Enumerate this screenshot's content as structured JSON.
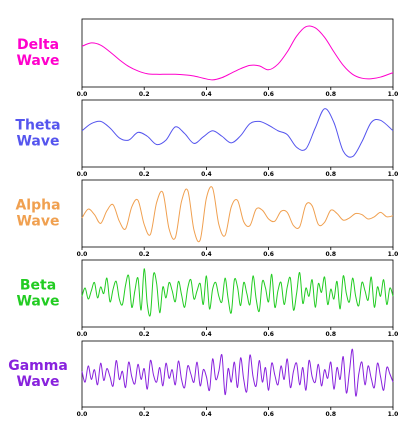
{
  "chart_data": [
    {
      "type": "line",
      "title": "",
      "xlabel": "",
      "ylabel": "",
      "xlim": [
        0.0,
        1.0
      ],
      "x_ticks": [
        "0.0",
        "0.2",
        "0.4",
        "0.6",
        "0.8",
        "1.0"
      ],
      "grid": false,
      "y_ticks_visible": false,
      "label_lines": [
        "Delta",
        "Wave"
      ],
      "color": "#ff00cc",
      "series": [
        {
          "x": [
            0.0,
            0.03,
            0.06,
            0.09,
            0.12,
            0.15,
            0.18,
            0.21,
            0.24,
            0.27,
            0.3,
            0.33,
            0.36,
            0.39,
            0.42,
            0.45,
            0.48,
            0.51,
            0.54,
            0.57,
            0.6,
            0.63,
            0.66,
            0.69,
            0.72,
            0.75,
            0.78,
            0.81,
            0.84,
            0.87,
            0.9,
            0.93,
            0.96,
            1.0
          ],
          "values": [
            0.62,
            0.68,
            0.64,
            0.52,
            0.38,
            0.26,
            0.18,
            0.13,
            0.12,
            0.12,
            0.12,
            0.11,
            0.09,
            0.05,
            0.02,
            0.06,
            0.14,
            0.22,
            0.28,
            0.27,
            0.2,
            0.3,
            0.52,
            0.8,
            0.97,
            0.95,
            0.78,
            0.52,
            0.28,
            0.12,
            0.05,
            0.04,
            0.07,
            0.15
          ]
        }
      ]
    },
    {
      "type": "line",
      "title": "",
      "xlabel": "",
      "ylabel": "",
      "xlim": [
        0.0,
        1.0
      ],
      "x_ticks": [
        "0.0",
        "0.2",
        "0.4",
        "0.6",
        "0.8",
        "1.0"
      ],
      "grid": false,
      "y_ticks_visible": false,
      "label_lines": [
        "Theta",
        "Wave"
      ],
      "color": "#5555ee",
      "series": [
        {
          "x": [
            0.0,
            0.03,
            0.06,
            0.09,
            0.12,
            0.15,
            0.18,
            0.21,
            0.24,
            0.27,
            0.3,
            0.33,
            0.36,
            0.39,
            0.42,
            0.45,
            0.48,
            0.51,
            0.54,
            0.57,
            0.6,
            0.63,
            0.66,
            0.69,
            0.72,
            0.75,
            0.78,
            0.81,
            0.84,
            0.87,
            0.9,
            0.93,
            0.96,
            1.0
          ],
          "values": [
            0.55,
            0.68,
            0.72,
            0.6,
            0.42,
            0.38,
            0.52,
            0.45,
            0.3,
            0.38,
            0.62,
            0.5,
            0.32,
            0.44,
            0.55,
            0.45,
            0.33,
            0.46,
            0.68,
            0.72,
            0.65,
            0.55,
            0.48,
            0.25,
            0.22,
            0.6,
            0.95,
            0.7,
            0.18,
            0.08,
            0.35,
            0.7,
            0.74,
            0.55
          ]
        }
      ]
    },
    {
      "type": "line",
      "title": "",
      "xlabel": "",
      "ylabel": "",
      "xlim": [
        0.0,
        1.0
      ],
      "x_ticks": [
        "0.0",
        "0.2",
        "0.4",
        "0.6",
        "0.8",
        "1.0"
      ],
      "grid": false,
      "y_ticks_visible": false,
      "label_lines": [
        "Alpha",
        "Wave"
      ],
      "color": "#f0a050",
      "series": [
        {
          "x": [
            0.0,
            0.02,
            0.04,
            0.06,
            0.08,
            0.1,
            0.12,
            0.14,
            0.16,
            0.18,
            0.2,
            0.22,
            0.24,
            0.26,
            0.28,
            0.3,
            0.32,
            0.34,
            0.36,
            0.38,
            0.4,
            0.42,
            0.44,
            0.46,
            0.48,
            0.5,
            0.52,
            0.54,
            0.56,
            0.58,
            0.6,
            0.62,
            0.64,
            0.66,
            0.68,
            0.7,
            0.72,
            0.74,
            0.76,
            0.78,
            0.8,
            0.82,
            0.84,
            0.86,
            0.88,
            0.9,
            0.92,
            0.94,
            0.96,
            0.98,
            1.0
          ],
          "values": [
            0.42,
            0.58,
            0.48,
            0.32,
            0.55,
            0.66,
            0.36,
            0.22,
            0.62,
            0.74,
            0.3,
            0.12,
            0.7,
            0.88,
            0.22,
            0.06,
            0.72,
            0.92,
            0.2,
            0.02,
            0.78,
            0.96,
            0.3,
            0.1,
            0.62,
            0.74,
            0.35,
            0.28,
            0.58,
            0.56,
            0.4,
            0.36,
            0.54,
            0.52,
            0.28,
            0.26,
            0.66,
            0.64,
            0.3,
            0.34,
            0.56,
            0.5,
            0.38,
            0.42,
            0.5,
            0.48,
            0.4,
            0.44,
            0.52,
            0.44,
            0.46
          ]
        }
      ]
    },
    {
      "type": "line",
      "title": "",
      "xlabel": "",
      "ylabel": "",
      "xlim": [
        0.0,
        1.0
      ],
      "x_ticks": [
        "0.0",
        "0.2",
        "0.4",
        "0.6",
        "0.8",
        "1.0"
      ],
      "grid": false,
      "y_ticks_visible": false,
      "label_lines": [
        "Beta",
        "Wave"
      ],
      "color": "#22cc22",
      "series": [
        {
          "x": [
            0.0,
            0.01,
            0.02,
            0.03,
            0.04,
            0.05,
            0.06,
            0.07,
            0.08,
            0.09,
            0.1,
            0.11,
            0.12,
            0.13,
            0.14,
            0.15,
            0.16,
            0.17,
            0.18,
            0.19,
            0.2,
            0.21,
            0.22,
            0.23,
            0.24,
            0.25,
            0.26,
            0.27,
            0.28,
            0.29,
            0.3,
            0.31,
            0.32,
            0.33,
            0.34,
            0.35,
            0.36,
            0.37,
            0.38,
            0.39,
            0.4,
            0.41,
            0.42,
            0.43,
            0.44,
            0.45,
            0.46,
            0.47,
            0.48,
            0.49,
            0.5,
            0.51,
            0.52,
            0.53,
            0.54,
            0.55,
            0.56,
            0.57,
            0.58,
            0.59,
            0.6,
            0.61,
            0.62,
            0.63,
            0.64,
            0.65,
            0.66,
            0.67,
            0.68,
            0.69,
            0.7,
            0.71,
            0.72,
            0.73,
            0.74,
            0.75,
            0.76,
            0.77,
            0.78,
            0.79,
            0.8,
            0.81,
            0.82,
            0.83,
            0.84,
            0.85,
            0.86,
            0.87,
            0.88,
            0.89,
            0.9,
            0.91,
            0.92,
            0.93,
            0.94,
            0.95,
            0.96,
            0.97,
            0.98,
            0.99,
            1.0
          ],
          "values": [
            0.45,
            0.6,
            0.4,
            0.55,
            0.7,
            0.42,
            0.62,
            0.5,
            0.78,
            0.35,
            0.58,
            0.72,
            0.4,
            0.3,
            0.65,
            0.82,
            0.25,
            0.55,
            0.78,
            0.2,
            0.95,
            0.3,
            0.12,
            0.85,
            0.68,
            0.15,
            0.62,
            0.42,
            0.7,
            0.55,
            0.35,
            0.72,
            0.48,
            0.25,
            0.6,
            0.75,
            0.4,
            0.55,
            0.68,
            0.3,
            0.82,
            0.22,
            0.58,
            0.7,
            0.45,
            0.35,
            0.78,
            0.4,
            0.15,
            0.75,
            0.62,
            0.28,
            0.7,
            0.5,
            0.3,
            0.82,
            0.4,
            0.18,
            0.72,
            0.6,
            0.35,
            0.85,
            0.25,
            0.55,
            0.7,
            0.3,
            0.62,
            0.78,
            0.2,
            0.5,
            0.88,
            0.32,
            0.6,
            0.45,
            0.75,
            0.25,
            0.68,
            0.52,
            0.8,
            0.3,
            0.58,
            0.4,
            0.72,
            0.22,
            0.82,
            0.5,
            0.35,
            0.78,
            0.45,
            0.28,
            0.7,
            0.55,
            0.38,
            0.8,
            0.25,
            0.62,
            0.45,
            0.75,
            0.3,
            0.6,
            0.45
          ]
        }
      ]
    },
    {
      "type": "line",
      "title": "",
      "xlabel": "",
      "ylabel": "",
      "xlim": [
        0.0,
        1.0
      ],
      "x_ticks": [
        "0.0",
        "0.2",
        "0.4",
        "0.6",
        "0.8",
        "1.0"
      ],
      "grid": false,
      "y_ticks_visible": false,
      "label_lines": [
        "Gamma",
        "Wave"
      ],
      "color": "#8822dd",
      "series": [
        {
          "x": [
            0.0,
            0.01,
            0.02,
            0.03,
            0.04,
            0.05,
            0.06,
            0.07,
            0.08,
            0.09,
            0.1,
            0.11,
            0.12,
            0.13,
            0.14,
            0.15,
            0.16,
            0.17,
            0.18,
            0.19,
            0.2,
            0.21,
            0.22,
            0.23,
            0.24,
            0.25,
            0.26,
            0.27,
            0.28,
            0.29,
            0.3,
            0.31,
            0.32,
            0.33,
            0.34,
            0.35,
            0.36,
            0.37,
            0.38,
            0.39,
            0.4,
            0.41,
            0.42,
            0.43,
            0.44,
            0.45,
            0.46,
            0.47,
            0.48,
            0.49,
            0.5,
            0.51,
            0.52,
            0.53,
            0.54,
            0.55,
            0.56,
            0.57,
            0.58,
            0.59,
            0.6,
            0.61,
            0.62,
            0.63,
            0.64,
            0.65,
            0.66,
            0.67,
            0.68,
            0.69,
            0.7,
            0.71,
            0.72,
            0.73,
            0.74,
            0.75,
            0.76,
            0.77,
            0.78,
            0.79,
            0.8,
            0.81,
            0.82,
            0.83,
            0.84,
            0.85,
            0.86,
            0.87,
            0.88,
            0.89,
            0.9,
            0.91,
            0.92,
            0.93,
            0.94,
            0.95,
            0.96,
            0.97,
            0.98,
            0.99,
            1.0
          ],
          "values": [
            0.55,
            0.35,
            0.65,
            0.4,
            0.58,
            0.3,
            0.7,
            0.38,
            0.6,
            0.45,
            0.28,
            0.75,
            0.4,
            0.55,
            0.25,
            0.72,
            0.45,
            0.32,
            0.68,
            0.4,
            0.6,
            0.22,
            0.75,
            0.48,
            0.35,
            0.62,
            0.28,
            0.7,
            0.42,
            0.58,
            0.3,
            0.74,
            0.4,
            0.25,
            0.65,
            0.5,
            0.35,
            0.72,
            0.28,
            0.58,
            0.45,
            0.2,
            0.78,
            0.4,
            0.55,
            0.85,
            0.12,
            0.6,
            0.35,
            0.72,
            0.25,
            0.8,
            0.4,
            0.18,
            0.85,
            0.45,
            0.28,
            0.75,
            0.35,
            0.62,
            0.2,
            0.7,
            0.48,
            0.3,
            0.65,
            0.4,
            0.78,
            0.25,
            0.55,
            0.7,
            0.3,
            0.62,
            0.2,
            0.75,
            0.45,
            0.35,
            0.68,
            0.28,
            0.58,
            0.42,
            0.72,
            0.22,
            0.62,
            0.4,
            0.82,
            0.15,
            0.55,
            0.95,
            0.1,
            0.5,
            0.72,
            0.3,
            0.65,
            0.42,
            0.25,
            0.7,
            0.45,
            0.2,
            0.62,
            0.5,
            0.35
          ]
        }
      ]
    }
  ]
}
